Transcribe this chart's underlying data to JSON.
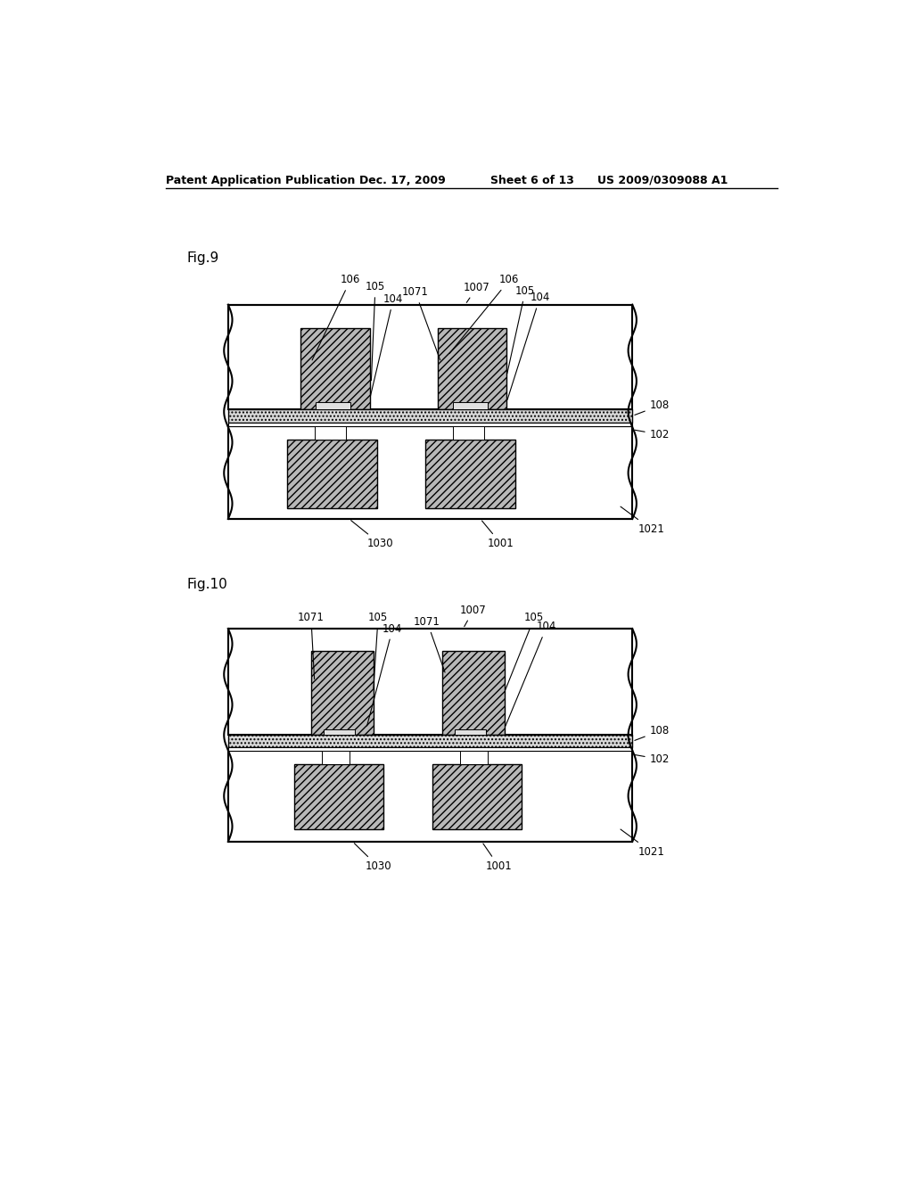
{
  "bg_color": "#ffffff",
  "header_text": "Patent Application Publication",
  "header_date": "Dec. 17, 2009",
  "header_sheet": "Sheet 6 of 13",
  "header_patent": "US 2009/0309088 A1",
  "fig9_label": "Fig.9",
  "fig10_label": "Fig.10",
  "font_size": 8.5,
  "fig_label_size": 11
}
